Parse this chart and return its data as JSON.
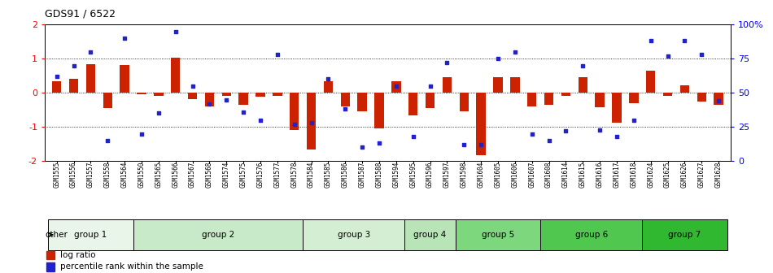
{
  "title": "GDS91 / 6522",
  "samples": [
    "GSM1555",
    "GSM1556",
    "GSM1557",
    "GSM1558",
    "GSM1564",
    "GSM1550",
    "GSM1565",
    "GSM1566",
    "GSM1567",
    "GSM1568",
    "GSM1574",
    "GSM1575",
    "GSM1576",
    "GSM1577",
    "GSM1578",
    "GSM1584",
    "GSM1585",
    "GSM1586",
    "GSM1587",
    "GSM1588",
    "GSM1594",
    "GSM1595",
    "GSM1596",
    "GSM1597",
    "GSM1598",
    "GSM1604",
    "GSM1605",
    "GSM1606",
    "GSM1607",
    "GSM1608",
    "GSM1614",
    "GSM1615",
    "GSM1616",
    "GSM1617",
    "GSM1618",
    "GSM1624",
    "GSM1625",
    "GSM1626",
    "GSM1627",
    "GSM1628"
  ],
  "log_ratio": [
    0.35,
    0.42,
    0.85,
    -0.45,
    0.82,
    -0.05,
    -0.08,
    1.02,
    -0.18,
    -0.4,
    -0.08,
    -0.35,
    -0.12,
    -0.1,
    -1.08,
    -1.65,
    0.35,
    -0.4,
    -0.55,
    -1.05,
    0.35,
    -0.65,
    -0.45,
    0.45,
    -0.55,
    -1.82,
    0.45,
    0.45,
    -0.4,
    -0.35,
    -0.1,
    0.45,
    -0.42,
    -0.88,
    -0.3,
    0.65,
    -0.08,
    0.22,
    -0.25,
    -0.35
  ],
  "percentile_rank": [
    62,
    70,
    80,
    15,
    90,
    20,
    35,
    95,
    55,
    42,
    45,
    36,
    30,
    78,
    27,
    28,
    60,
    38,
    10,
    13,
    55,
    18,
    55,
    72,
    12,
    12,
    75,
    80,
    20,
    15,
    22,
    70,
    23,
    18,
    30,
    88,
    77,
    88,
    78,
    44
  ],
  "group_defs": [
    {
      "name": "group 1",
      "start": 0,
      "end": 5,
      "color": "#e8f5e8"
    },
    {
      "name": "group 2",
      "start": 5,
      "end": 15,
      "color": "#c8eac8"
    },
    {
      "name": "group 3",
      "start": 15,
      "end": 21,
      "color": "#d4eed4"
    },
    {
      "name": "group 4",
      "start": 21,
      "end": 24,
      "color": "#b8e4b8"
    },
    {
      "name": "group 5",
      "start": 24,
      "end": 29,
      "color": "#7dd87d"
    },
    {
      "name": "group 6",
      "start": 29,
      "end": 35,
      "color": "#50c850"
    },
    {
      "name": "group 7",
      "start": 35,
      "end": 40,
      "color": "#30b830"
    }
  ],
  "bar_color": "#cc2200",
  "scatter_color": "#2222cc",
  "yticks_left": [
    -2,
    -1,
    0,
    1,
    2
  ],
  "yticks_right_labels": [
    "0",
    "25",
    "50",
    "75",
    "100%"
  ]
}
